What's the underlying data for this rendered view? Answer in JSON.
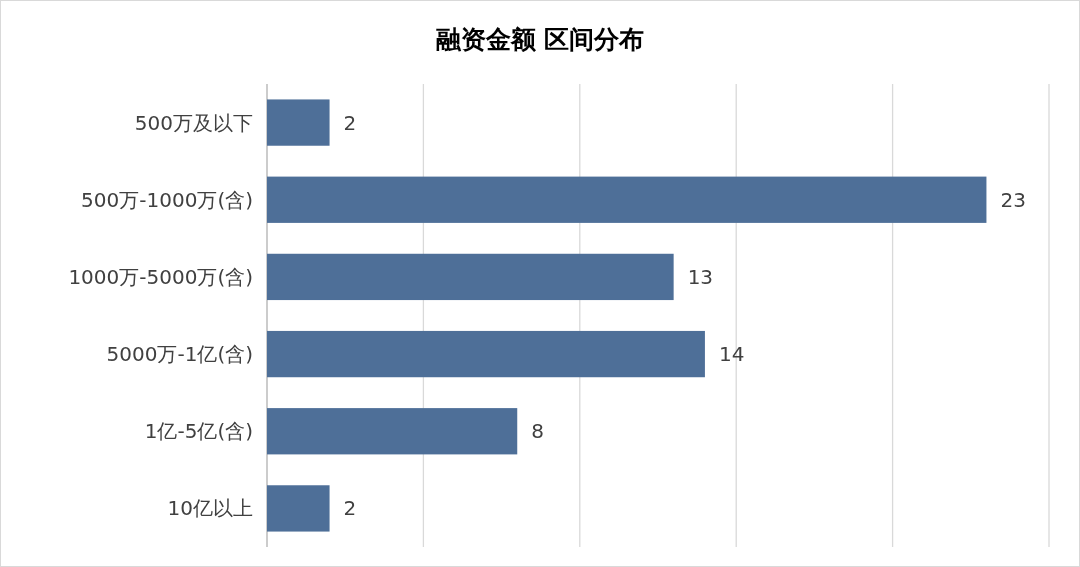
{
  "chart_data": {
    "type": "bar",
    "orientation": "horizontal",
    "title": "融资金额 区间分布",
    "categories": [
      "500万及以下",
      "500万-1000万(含)",
      "1000万-5000万(含)",
      "5000万-1亿(含)",
      "1亿-5亿(含)",
      "10亿以上"
    ],
    "values": [
      2,
      23,
      13,
      14,
      8,
      2
    ],
    "color": "#4e6f98",
    "data_labels": true,
    "xlim": [
      0,
      25
    ],
    "xticks": [
      {
        "value": 0,
        "label": null
      },
      {
        "value": 5,
        "label": null
      },
      {
        "value": 10,
        "label": null
      },
      {
        "value": 15,
        "label": null
      },
      {
        "value": 20,
        "label": null
      },
      {
        "value": 25,
        "label": null
      }
    ],
    "grid": "x",
    "tick_labels": "y"
  }
}
